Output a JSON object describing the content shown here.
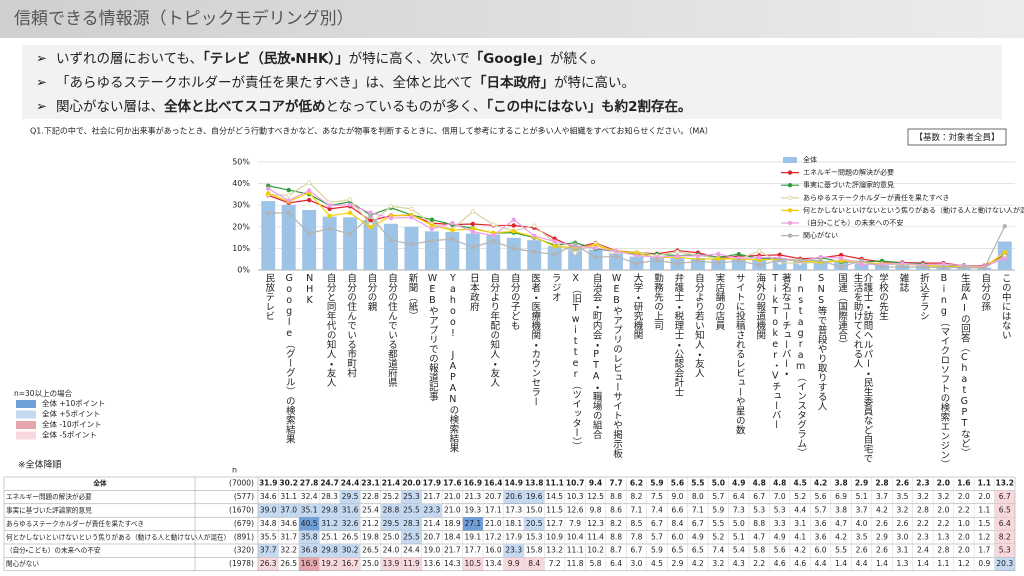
{
  "header": {
    "title": "信頼できる情報源（トピックモデリング別）"
  },
  "bullets": [
    [
      {
        "text": "いずれの層においても、"
      },
      {
        "text": "「テレビ（民放・NHK）」",
        "bold": true
      },
      {
        "text": "が特に高く、次いで"
      },
      {
        "text": "「Google」",
        "bold": true
      },
      {
        "text": "が続く。"
      }
    ],
    [
      {
        "text": "「あらゆるステークホルダーが責任を果たすべき」は、全体と比べて"
      },
      {
        "text": "「日本政府」",
        "bold": true
      },
      {
        "text": "が特に高い。"
      }
    ],
    [
      {
        "text": "関心がない層は、"
      },
      {
        "text": "全体と比べてスコアが低め",
        "bold": true
      },
      {
        "text": "となっているものが多く、"
      },
      {
        "text": "「この中にはない」も約2割存在。",
        "bold": true
      }
    ]
  ],
  "question": "Q1.下記の中で、社会に何か出来事があったとき、自分がどう行動すべきかなど、あなたが物事を判断するときに、信用して参考にすることが多い人や組織をすべてお知らせください。（MA）",
  "base_note": "【基数：対象者全員】",
  "sort_note": "※全体降順",
  "n_header": "n",
  "highlight_legend": {
    "title": "n=30以上の場合",
    "items": [
      {
        "label": "全体 +10ポイント",
        "threshold": 10,
        "color": "#6f9fd8"
      },
      {
        "label": "全体 +5ポイント",
        "threshold": 5,
        "color": "#c5d9f1"
      },
      {
        "label": "全体 -10ポイント",
        "threshold": -10,
        "color": "#e6a6ae"
      },
      {
        "label": "全体 -5ポイント",
        "threshold": -5,
        "color": "#f7d9dd"
      }
    ]
  },
  "chart_data": {
    "type": "combo",
    "categories": [
      "民放テレビ",
      "Google（グーグル）の検索結果",
      "NHK",
      "自分と同年代の知人・友人",
      "自分の住んでいる市町村",
      "自分の親",
      "自分の住んでいる都道府県",
      "新聞（紙）",
      "WEBやアプリでの報道記事",
      "Yahoo! JAPANの検索結果",
      "日本政府",
      "自分より年配の知人・友人",
      "自分の子ども",
      "医者・医療機関・カウンセラー",
      "ラジオ",
      "X（旧Twitter（ツイッター））",
      "自治会・町内会・PTA・職場の組合",
      "WEBやアプリのレビューサイトや掲示板",
      "大学・研究機関",
      "勤務先の上司",
      "弁護士・税理士・公認会計士",
      "自分より若い知人・友人",
      "実店舗の店員",
      "サイトに投稿されるレビューや星の数",
      "海外の報道機関",
      "著名なユーチューバー・TikToker・Vチューバー",
      "Instagram（インスタグラム）",
      "SNS等で普段やり取りする人",
      "国連（国際連合）",
      "介護士・訪問ヘルパー・民生委員など自宅で生活を助けてくれる人",
      "学校の先生",
      "雑誌",
      "折込チラシ",
      "Bing（マイクロソフトの検索エンジン）",
      "生成AIの回答（ChatGPTなど）",
      "自分の孫",
      "この中にはない"
    ],
    "ylim": [
      0,
      50
    ],
    "yticks": [
      {
        "value": 0,
        "label": "0%"
      },
      {
        "value": 10,
        "label": "10%"
      },
      {
        "value": 20,
        "label": "20%"
      },
      {
        "value": 30,
        "label": "30%"
      },
      {
        "value": 40,
        "label": "40%"
      },
      {
        "value": 50,
        "label": "50%"
      }
    ],
    "grid": true,
    "legend": "top-right",
    "series": [
      {
        "name": "全体",
        "type": "bar",
        "color": "#9dc3e6",
        "n": 7000,
        "n_label": "(7000)",
        "values": [
          31.9,
          30.2,
          27.8,
          24.7,
          24.4,
          23.1,
          21.4,
          20.0,
          17.9,
          17.6,
          16.9,
          16.4,
          14.9,
          13.8,
          11.1,
          10.7,
          9.4,
          7.7,
          6.2,
          5.9,
          5.6,
          5.5,
          5.0,
          4.9,
          4.8,
          4.8,
          4.5,
          4.2,
          3.8,
          2.9,
          2.8,
          2.6,
          2.3,
          2.0,
          1.6,
          1.1,
          13.2
        ],
        "value_labels": [
          "31.9",
          "30.2",
          "27.8",
          "24.7",
          "24.4",
          "23.1",
          "21.4",
          "20.0",
          "17.9",
          "17.6",
          "16.9",
          "16.4",
          "14.9",
          "13.8",
          "11.1",
          "10.7",
          "9.4",
          "7.7",
          "6.2",
          "5.9",
          "5.6",
          "5.5",
          "5.0",
          "4.9",
          "4.8",
          "4.8",
          "4.5",
          "4.2",
          "3.8",
          "2.9",
          "2.8",
          "2.6",
          "2.3",
          "2.0",
          "1.6",
          "1.1",
          "13.2"
        ]
      },
      {
        "name": "エネルギー問題の解決が必要",
        "type": "line",
        "color": "#e0242b",
        "n": 577,
        "n_label": "(577)",
        "values": [
          34.6,
          31.1,
          32.4,
          28.3,
          29.5,
          22.8,
          25.2,
          25.3,
          21.7,
          21.0,
          21.3,
          20.7,
          20.6,
          19.6,
          14.5,
          10.3,
          12.5,
          8.8,
          8.2,
          7.5,
          9.0,
          8.0,
          5.7,
          6.4,
          6.7,
          7.0,
          5.2,
          5.6,
          6.9,
          5.1,
          3.7,
          3.5,
          3.2,
          3.2,
          2.0,
          2.0,
          6.7
        ],
        "value_labels": [
          "34.6",
          "31.1",
          "32.4",
          "28.3",
          "29.5",
          "22.8",
          "25.2",
          "25.3",
          "21.7",
          "21.0",
          "21.3",
          "20.7",
          "20.6",
          "19.6",
          "14.5",
          "10.3",
          "12.5",
          "8.8",
          "8.2",
          "7.5",
          "9.0",
          "8.0",
          "5.7",
          "6.4",
          "6.7",
          "7.0",
          "5.2",
          "5.6",
          "6.9",
          "5.1",
          "3.7",
          "3.5",
          "3.2",
          "3.2",
          "2.0",
          "2.0",
          "6.7"
        ]
      },
      {
        "name": "事実に基づいた評論家的意見",
        "type": "line",
        "color": "#2e9c3c",
        "n": 1670,
        "n_label": "(1670)",
        "values": [
          39.0,
          37.0,
          35.1,
          29.8,
          31.6,
          25.4,
          28.8,
          25.5,
          23.3,
          21.0,
          19.3,
          17.1,
          17.3,
          15.0,
          11.5,
          12.6,
          9.8,
          8.6,
          7.1,
          7.4,
          6.6,
          7.1,
          5.9,
          7.3,
          5.3,
          5.3,
          4.4,
          5.7,
          3.8,
          3.7,
          4.2,
          3.2,
          2.8,
          2.0,
          2.2,
          1.1,
          6.5
        ],
        "value_labels": [
          "39.0",
          "37.0",
          "35.1",
          "29.8",
          "31.6",
          "25.4",
          "28.8",
          "25.5",
          "23.3",
          "21.0",
          "19.3",
          "17.1",
          "17.3",
          "15.0",
          "11.5",
          "12.6",
          "9.8",
          "8.6",
          "7.1",
          "7.4",
          "6.6",
          "7.1",
          "5.9",
          "7.3",
          "5.3",
          "5.3",
          "4.4",
          "5.7",
          "3.8",
          "3.7",
          "4.2",
          "3.2",
          "2.8",
          "2.0",
          "2.2",
          "1.1",
          "6.5"
        ]
      },
      {
        "name": "あらゆるステークホルダーが責任を果たすべき",
        "type": "line",
        "color": "#d9d2a0",
        "marker_fill": "#ffffff",
        "n": 679,
        "n_label": "(679)",
        "values": [
          34.8,
          34.6,
          40.5,
          31.2,
          32.6,
          21.2,
          29.5,
          28.3,
          21.4,
          18.9,
          27.1,
          21.0,
          18.1,
          20.5,
          12.7,
          7.9,
          12.3,
          8.2,
          8.5,
          6.7,
          8.4,
          6.7,
          5.5,
          5.0,
          8.8,
          3.3,
          3.1,
          3.6,
          4.7,
          4.0,
          2.6,
          2.6,
          2.2,
          2.2,
          1.0,
          1.5,
          6.4
        ],
        "value_labels": [
          "34.8",
          "34.6",
          "40.5",
          "31.2",
          "32.6",
          "21.2",
          "29.5",
          "28.3",
          "21.4",
          "18.9",
          "27.1",
          "21.0",
          "18.1",
          "20.5",
          "12.7",
          "7.9",
          "12.3",
          "8.2",
          "8.5",
          "6.7",
          "8.4",
          "6.7",
          "5.5",
          "5.0",
          "8.8",
          "3.3",
          "3.1",
          "3.6",
          "4.7",
          "4.0",
          "2.6",
          "2.6",
          "2.2",
          "2.2",
          "1.0",
          "1.5",
          "6.4"
        ]
      },
      {
        "name": "何とかしないといけないという焦りがある（動ける人と動けない人が混在）",
        "type": "line",
        "color": "#f2cf00",
        "n": 891,
        "n_label": "(891)",
        "values": [
          35.5,
          31.7,
          35.8,
          25.1,
          26.5,
          19.8,
          25.0,
          25.5,
          20.7,
          18.4,
          19.1,
          17.2,
          17.9,
          15.3,
          10.9,
          10.4,
          11.4,
          8.8,
          7.8,
          5.7,
          6.0,
          4.9,
          5.2,
          5.1,
          4.7,
          4.9,
          4.1,
          3.6,
          4.2,
          3.5,
          2.9,
          3.0,
          2.3,
          1.3,
          2.0,
          1.2,
          8.2
        ],
        "value_labels": [
          "35.5",
          "31.7",
          "35.8",
          "25.1",
          "26.5",
          "19.8",
          "25.0",
          "25.5",
          "20.7",
          "18.4",
          "19.1",
          "17.2",
          "17.9",
          "15.3",
          "10.9",
          "10.4",
          "11.4",
          "8.8",
          "7.8",
          "5.7",
          "6.0",
          "4.9",
          "5.2",
          "5.1",
          "4.7",
          "4.9",
          "4.1",
          "3.6",
          "4.2",
          "3.5",
          "2.9",
          "3.0",
          "2.3",
          "1.3",
          "2.0",
          "1.2",
          "8.2"
        ]
      },
      {
        "name": "（自分・こども）の未来への不安",
        "type": "line",
        "color": "#ef9fe6",
        "n": 320,
        "n_label": "(320)",
        "values": [
          37.7,
          32.2,
          36.8,
          29.8,
          30.2,
          26.5,
          24.0,
          24.4,
          19.0,
          21.7,
          17.7,
          16.0,
          23.3,
          15.8,
          13.2,
          11.1,
          10.2,
          8.7,
          6.7,
          5.9,
          6.5,
          6.5,
          7.4,
          5.4,
          5.8,
          5.6,
          4.2,
          6.0,
          5.5,
          2.6,
          2.6,
          3.1,
          2.4,
          2.8,
          2.0,
          1.7,
          5.3
        ],
        "value_labels": [
          "37.7",
          "32.2",
          "36.8",
          "29.8",
          "30.2",
          "26.5",
          "24.0",
          "24.4",
          "19.0",
          "21.7",
          "17.7",
          "16.0",
          "23.3",
          "15.8",
          "13.2",
          "11.1",
          "10.2",
          "8.7",
          "6.7",
          "5.9",
          "6.5",
          "6.5",
          "7.4",
          "5.4",
          "5.8",
          "5.6",
          "4.2",
          "6.0",
          "5.5",
          "2.6",
          "2.6",
          "3.1",
          "2.4",
          "2.8",
          "2.0",
          "1.7",
          "5.3"
        ]
      },
      {
        "name": "関心がない",
        "type": "line",
        "color": "#b3b3b3",
        "n": 1978,
        "n_label": "(1978)",
        "values": [
          26.3,
          26.5,
          16.9,
          19.2,
          16.7,
          25.0,
          13.9,
          11.9,
          13.6,
          14.3,
          10.5,
          13.4,
          9.9,
          8.4,
          7.2,
          11.8,
          5.8,
          6.4,
          3.0,
          4.5,
          2.9,
          4.2,
          3.2,
          4.3,
          2.2,
          4.6,
          4.6,
          4.4,
          1.4,
          4.4,
          1.4,
          1.3,
          1.4,
          1.1,
          1.2,
          0.9,
          20.3
        ],
        "value_labels": [
          "26.3",
          "26.5",
          "16.9",
          "19.2",
          "16.7",
          "25.0",
          "13.9",
          "11.9",
          "13.6",
          "14.3",
          "10.5",
          "13.4",
          "9.9",
          "8.4",
          "7.2",
          "11.8",
          "5.8",
          "6.4",
          "3.0",
          "4.5",
          "2.9",
          "4.2",
          "3.2",
          "4.3",
          "2.2",
          "4.6",
          "4.6",
          "4.4",
          "1.4",
          "4.4",
          "1.4",
          "1.3",
          "1.4",
          "1.1",
          "1.2",
          "0.9",
          "20.3"
        ]
      }
    ]
  }
}
